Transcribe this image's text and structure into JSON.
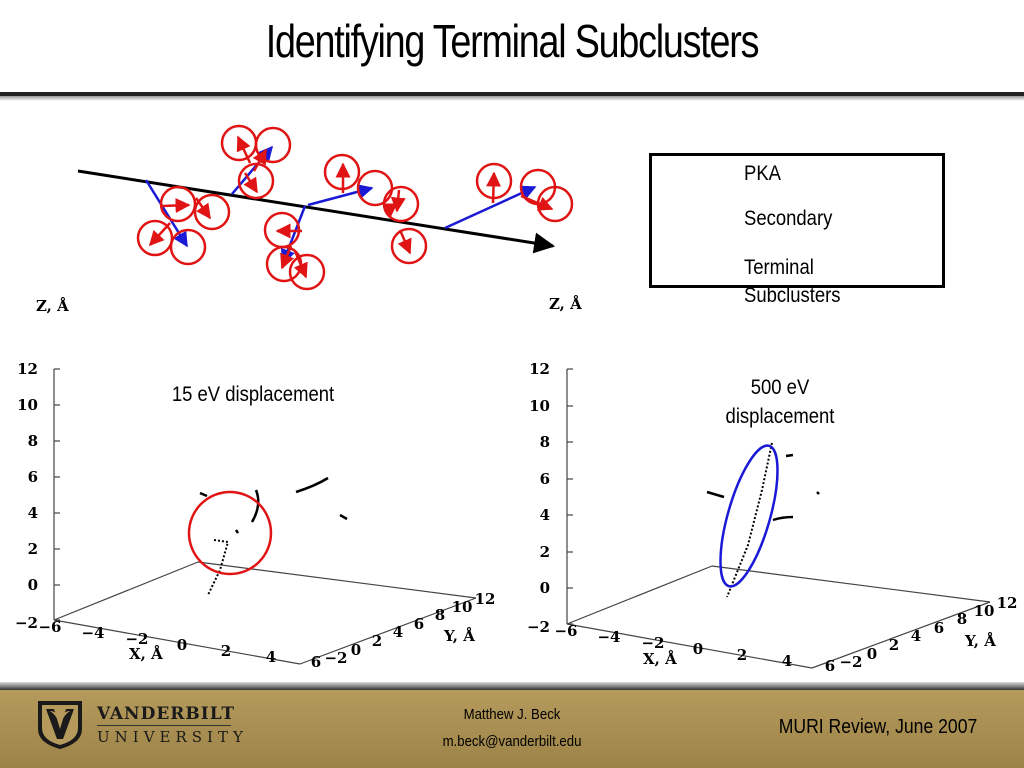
{
  "slide": {
    "title": "Identifying Terminal Subclusters"
  },
  "legend": {
    "items": [
      {
        "label": "PKA",
        "color": "#000000"
      },
      {
        "label": "Secondary",
        "color": "#1a1ad6"
      },
      {
        "label": "Terminal Subclusters",
        "color": "#e01414"
      }
    ]
  },
  "plots": {
    "left": {
      "z_label": "Z, Å",
      "x_label": "X, Å",
      "y_label": "Y, Å",
      "annotation": "15 eV displacement",
      "highlight_color": "#e01414",
      "z_ticks": [
        "12",
        "10",
        "8",
        "6",
        "4",
        "2",
        "0",
        "−2"
      ],
      "x_ticks": [
        "−6",
        "−4",
        "−2",
        "0",
        "2",
        "4",
        "6"
      ],
      "y_ticks": [
        "−2",
        "0",
        "2",
        "4",
        "6",
        "8",
        "10",
        "12"
      ]
    },
    "right": {
      "z_label": "Z, Å",
      "x_label": "X, Å",
      "y_label": "Y, Å",
      "annotation_line1": "500 eV",
      "annotation_line2": "displacement",
      "highlight_color": "#1a1ad6",
      "z_ticks": [
        "12",
        "10",
        "8",
        "6",
        "4",
        "2",
        "0",
        "−2"
      ],
      "x_ticks": [
        "−6",
        "−4",
        "−2",
        "0",
        "2",
        "4",
        "6"
      ],
      "y_ticks": [
        "−2",
        "0",
        "2",
        "4",
        "6",
        "8",
        "10",
        "12"
      ]
    }
  },
  "footer": {
    "org_line1": "VANDERBILT",
    "org_line2": "UNIVERSITY",
    "author": "Matthew J. Beck",
    "email": "m.beck@vanderbilt.edu",
    "event": "MURI Review, June 2007",
    "logo_icon": "vanderbilt-logo-icon",
    "bar_color": "#a88e52"
  }
}
